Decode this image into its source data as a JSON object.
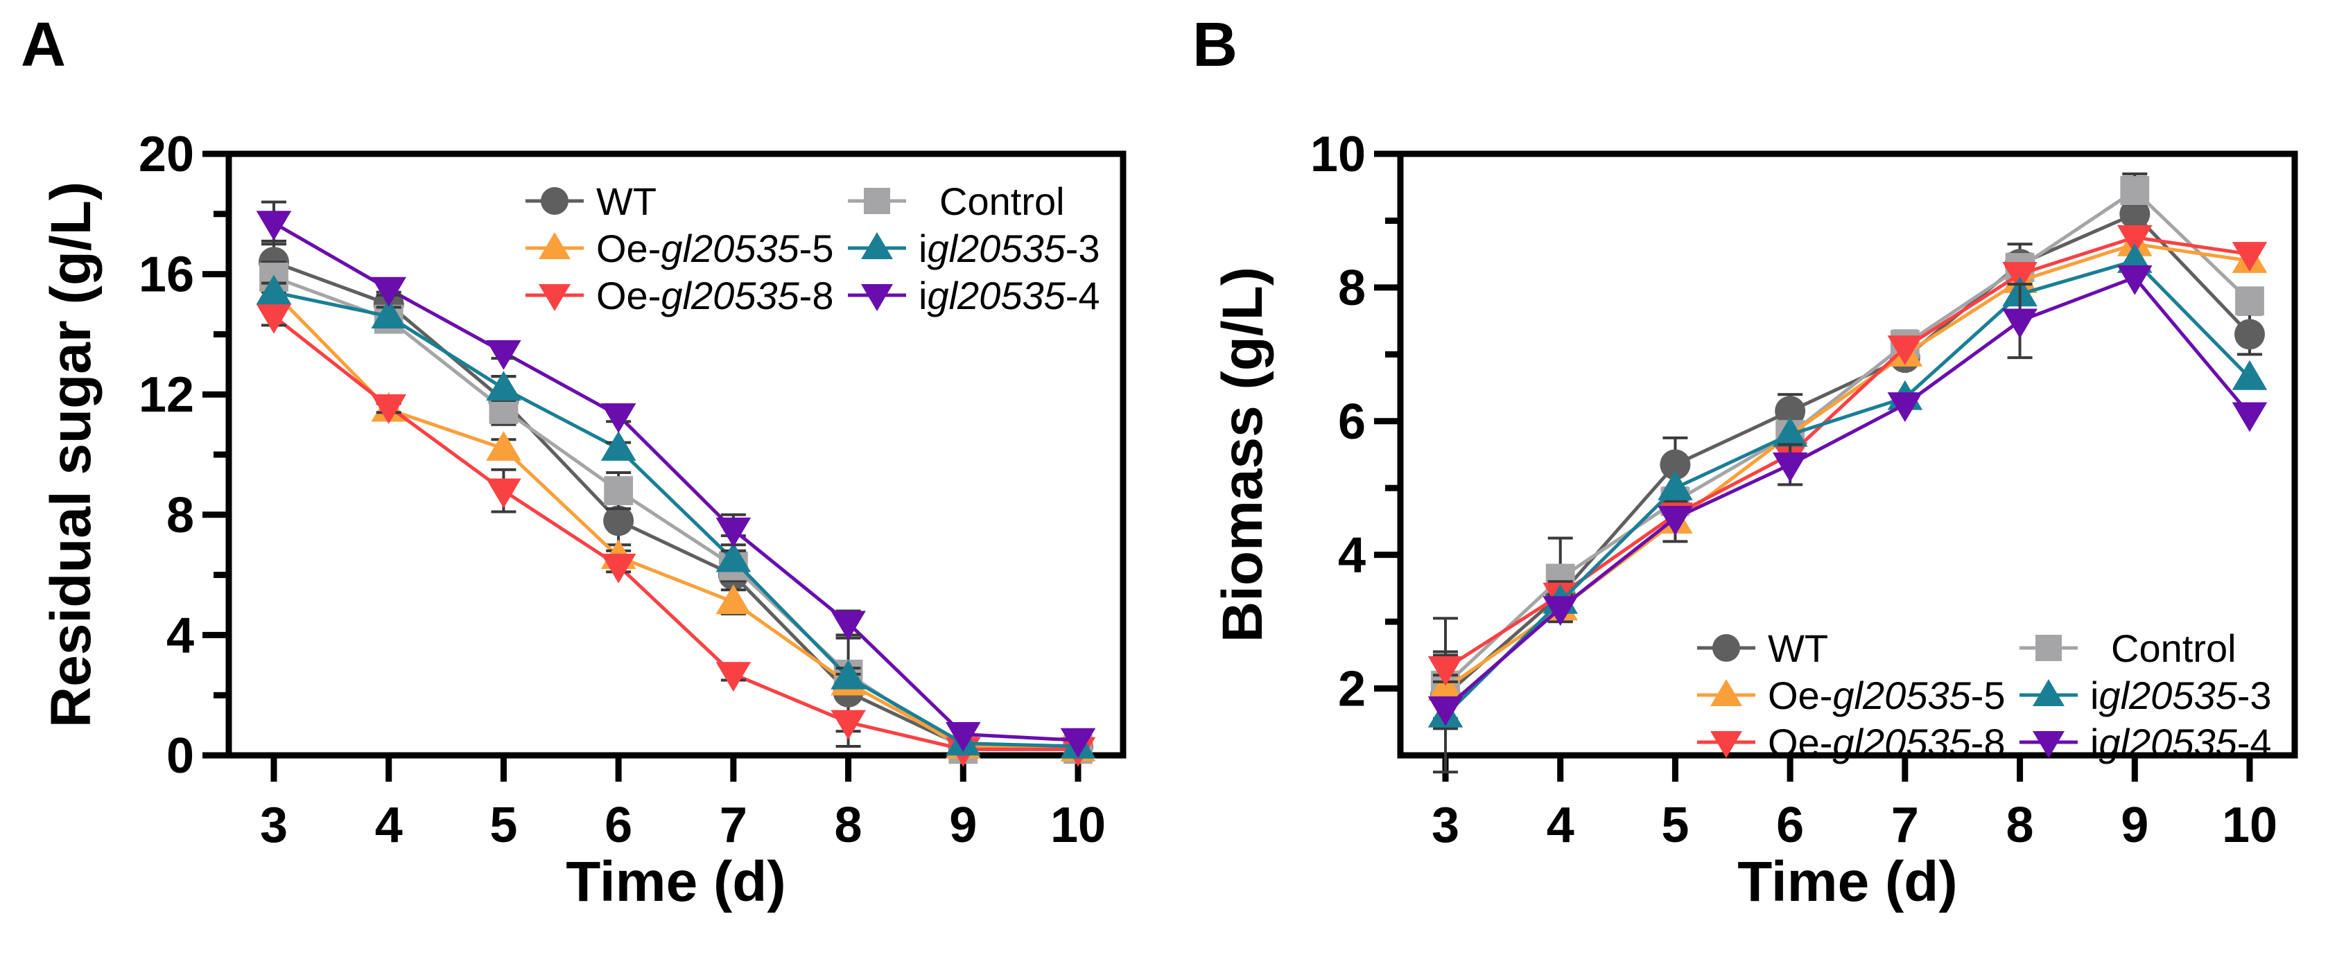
{
  "chart_data": [
    {
      "panel_label": "A",
      "type": "line",
      "xlabel": "Time (d)",
      "ylabel": "Residual sugar (g/L)",
      "x": [
        3,
        4,
        5,
        6,
        7,
        8,
        9,
        10
      ],
      "x_tick_labels": [
        "3",
        "4",
        "5",
        "6",
        "7",
        "8",
        "9",
        "10"
      ],
      "ylim": [
        0,
        20
      ],
      "y_ticks": [
        0,
        4,
        8,
        12,
        16,
        20
      ],
      "y_tick_labels": [
        "0",
        "4",
        "8",
        "12",
        "16",
        "20"
      ],
      "y_minor_ticks": [
        2,
        6,
        10,
        14,
        18
      ],
      "legend_placement": "top-right",
      "series": [
        {
          "key": "wt",
          "label": {
            "pre": "WT",
            "it": "",
            "post": ""
          },
          "marker": "circle",
          "color": "#5f5f5f",
          "values": [
            16.4,
            15.0,
            11.8,
            7.8,
            6.0,
            2.1,
            0.3,
            0.3
          ],
          "errors": [
            0.7,
            0.4,
            0.8,
            0.8,
            1.3,
            1.8,
            0.1,
            0.1
          ]
        },
        {
          "key": "control",
          "label": {
            "pre": "Control",
            "it": "",
            "post": ""
          },
          "marker": "square",
          "color": "#a5a5a7",
          "values": [
            15.9,
            14.5,
            11.5,
            8.8,
            6.3,
            2.7,
            0.2,
            0.2
          ],
          "errors": [
            0.5,
            0.3,
            0.5,
            0.6,
            0.5,
            0.4,
            0.1,
            0.1
          ]
        },
        {
          "key": "oe5",
          "label": {
            "pre": "Oe-",
            "it": "gl20535",
            "post": "-5"
          },
          "marker": "triangle-up",
          "color": "#f9a03a",
          "values": [
            15.4,
            11.5,
            10.2,
            6.6,
            5.1,
            2.4,
            0.3,
            0.2
          ],
          "errors": [
            0.3,
            0.2,
            0.3,
            0.2,
            0.4,
            0.3,
            0.1,
            0.1
          ]
        },
        {
          "key": "oe8",
          "label": {
            "pre": "Oe-",
            "it": "gl20535",
            "post": "-8"
          },
          "marker": "triangle-down",
          "color": "#f94144",
          "values": [
            14.6,
            11.6,
            8.8,
            6.3,
            2.7,
            1.1,
            0.2,
            0.2
          ],
          "errors": [
            0.3,
            0.2,
            0.7,
            0.2,
            0.2,
            0.3,
            0.1,
            0.1
          ]
        },
        {
          "key": "igl3",
          "label": {
            "pre": "i",
            "it": "gl20535",
            "post": "-3"
          },
          "marker": "triangle-up",
          "color": "#1a7f95",
          "values": [
            15.4,
            14.6,
            12.2,
            10.2,
            6.5,
            2.6,
            0.4,
            0.3
          ],
          "errors": [
            0.3,
            0.3,
            0.4,
            0.2,
            0.3,
            0.3,
            0.1,
            0.1
          ]
        },
        {
          "key": "igl4",
          "label": {
            "pre": "i",
            "it": "gl20535",
            "post": "-4"
          },
          "marker": "triangle-down",
          "color": "#6a0dad",
          "values": [
            17.7,
            15.5,
            13.4,
            11.3,
            7.5,
            4.4,
            0.7,
            0.5
          ],
          "errors": [
            0.7,
            0.2,
            0.2,
            0.2,
            0.5,
            0.4,
            0.1,
            0.1
          ]
        }
      ]
    },
    {
      "panel_label": "B",
      "type": "line",
      "xlabel": "Time (d)",
      "ylabel": "Biomass (g/L)",
      "x": [
        3,
        4,
        5,
        6,
        7,
        8,
        9,
        10
      ],
      "x_tick_labels": [
        "3",
        "4",
        "5",
        "6",
        "7",
        "8",
        "9",
        "10"
      ],
      "ylim": [
        1,
        10
      ],
      "y_ticks": [
        2,
        4,
        6,
        8,
        10
      ],
      "y_tick_labels": [
        "2",
        "4",
        "6",
        "8",
        "10"
      ],
      "y_minor_ticks": [
        1,
        3,
        5,
        7,
        9
      ],
      "legend_placement": "bottom-right",
      "series": [
        {
          "key": "wt",
          "label": {
            "pre": "WT",
            "it": "",
            "post": ""
          },
          "marker": "circle",
          "color": "#5f5f5f",
          "values": [
            1.9,
            3.4,
            5.35,
            6.15,
            6.95,
            8.35,
            9.1,
            7.3
          ],
          "errors": [
            1.15,
            0.4,
            0.4,
            0.25,
            0.15,
            0.3,
            0.6,
            0.3
          ]
        },
        {
          "key": "control",
          "label": {
            "pre": "Control",
            "it": "",
            "post": ""
          },
          "marker": "square",
          "color": "#a5a5a7",
          "values": [
            2.05,
            3.65,
            4.8,
            5.8,
            7.15,
            8.3,
            9.45,
            7.8
          ],
          "errors": [
            0.5,
            0.6,
            0.2,
            0.15,
            0.2,
            0.2,
            0.2,
            0.15
          ]
        },
        {
          "key": "oe5",
          "label": {
            "pre": "Oe-",
            "it": "gl20535",
            "post": "-5"
          },
          "marker": "triangle-up",
          "color": "#f9a03a",
          "values": [
            2.0,
            3.2,
            4.5,
            5.8,
            7.0,
            8.1,
            8.65,
            8.4
          ],
          "errors": [
            0.2,
            0.2,
            0.3,
            0.1,
            0.1,
            0.1,
            0.1,
            0.1
          ]
        },
        {
          "key": "oe8",
          "label": {
            "pre": "Oe-",
            "it": "gl20535",
            "post": "-8"
          },
          "marker": "triangle-down",
          "color": "#f94144",
          "values": [
            2.3,
            3.4,
            4.6,
            5.5,
            7.1,
            8.2,
            8.75,
            8.5
          ],
          "errors": [
            0.2,
            0.2,
            0.1,
            0.1,
            0.1,
            0.1,
            0.1,
            0.1
          ]
        },
        {
          "key": "igl3",
          "label": {
            "pre": "i",
            "it": "gl20535",
            "post": "-3"
          },
          "marker": "triangle-up",
          "color": "#1a7f95",
          "values": [
            1.6,
            3.3,
            5.0,
            5.8,
            6.35,
            7.9,
            8.4,
            6.65
          ],
          "errors": [
            0.2,
            0.1,
            0.1,
            0.1,
            0.1,
            0.1,
            0.1,
            0.1
          ]
        },
        {
          "key": "igl4",
          "label": {
            "pre": "i",
            "it": "gl20535",
            "post": "-4"
          },
          "marker": "triangle-down",
          "color": "#6a0dad",
          "values": [
            1.7,
            3.2,
            4.55,
            5.35,
            6.25,
            7.5,
            8.15,
            6.1
          ],
          "errors": [
            0.1,
            0.1,
            0.1,
            0.3,
            0.1,
            0.55,
            0.1,
            0.1
          ]
        }
      ]
    }
  ]
}
